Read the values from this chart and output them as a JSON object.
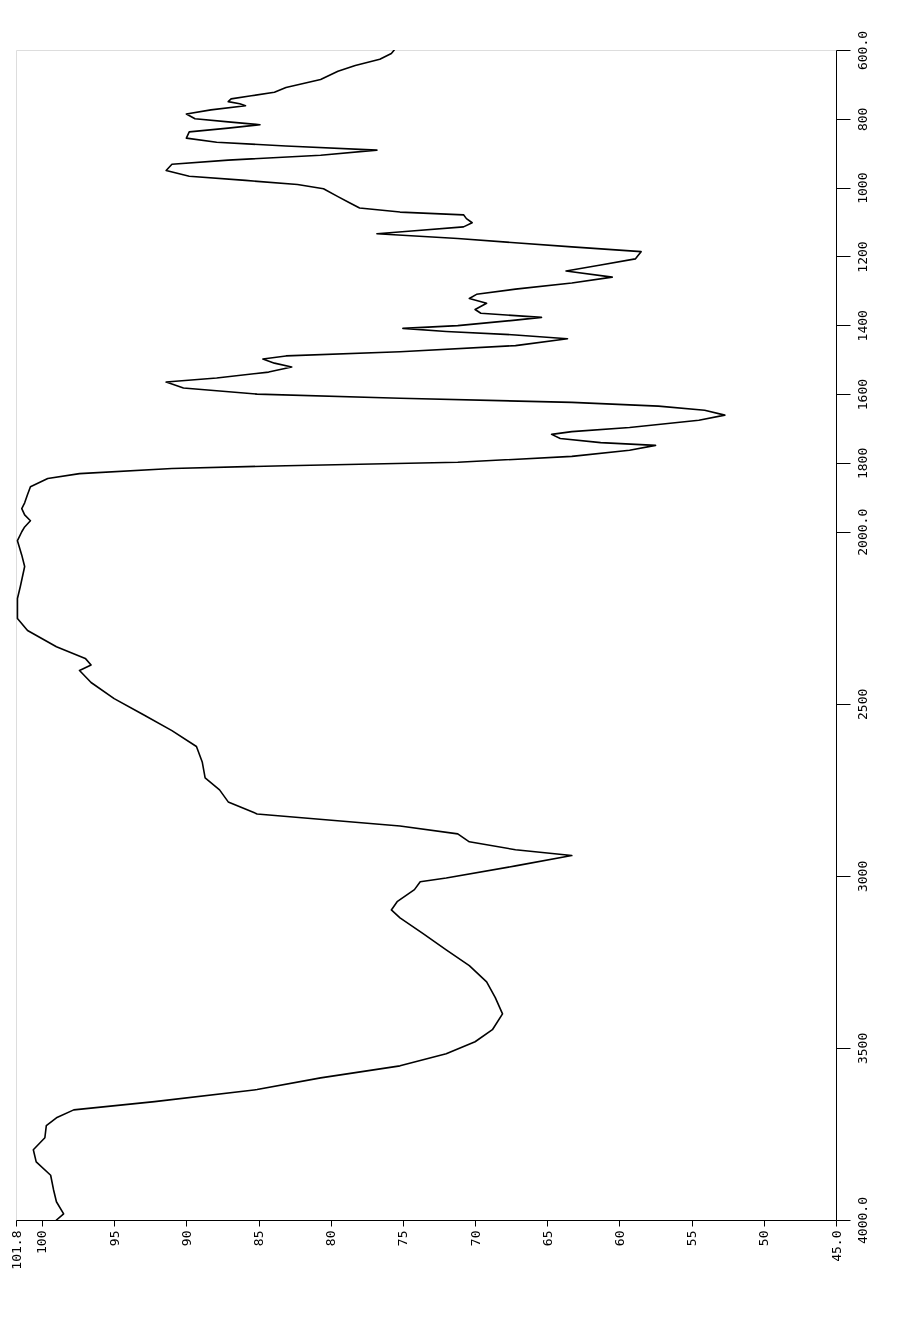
{
  "chart_data": {
    "type": "line",
    "x": [
      99.0,
      98.5,
      99.0,
      99.2,
      99.4,
      100.4,
      100.6,
      99.8,
      99.7,
      99.0,
      97.8,
      92.2,
      85.1,
      80.7,
      75.2,
      72.0,
      70.0,
      68.8,
      68.1,
      68.6,
      69.2,
      70.4,
      72.0,
      73.6,
      75.2,
      75.8,
      75.4,
      74.2,
      73.8,
      72.0,
      67.2,
      63.3,
      67.2,
      70.4,
      71.2,
      75.2,
      85.1,
      87.1,
      87.7,
      88.7,
      88.9,
      89.3,
      91.0,
      93.0,
      95.0,
      96.6,
      97.4,
      96.6,
      97.0,
      99.0,
      101.0,
      101.7,
      101.7,
      101.7,
      101.5,
      101.2,
      101.4,
      101.7,
      101.4,
      101.2,
      100.8,
      101.2,
      101.4,
      101.2,
      101.0,
      100.8,
      99.6,
      97.4,
      91.0,
      83.1,
      71.2,
      63.3,
      59.3,
      57.5,
      61.3,
      64.1,
      64.7,
      63.3,
      59.3,
      54.5,
      52.7,
      54.1,
      57.3,
      63.3,
      75.2,
      85.1,
      90.2,
      91.4,
      87.9,
      84.3,
      82.7,
      83.9,
      84.7,
      83.1,
      75.2,
      67.2,
      63.6,
      67.2,
      72.0,
      75.0,
      71.2,
      67.2,
      65.4,
      69.6,
      70.0,
      69.2,
      70.4,
      69.9,
      67.2,
      63.3,
      60.5,
      63.7,
      61.3,
      58.9,
      58.5,
      63.3,
      71.2,
      76.8,
      74.4,
      70.8,
      70.2,
      70.6,
      70.8,
      75.2,
      78.0,
      78.7,
      79.5,
      80.5,
      82.3,
      85.9,
      89.8,
      91.4,
      91.0,
      87.1,
      80.7,
      76.8,
      83.1,
      87.9,
      90.0,
      89.8,
      87.1,
      84.9,
      87.1,
      89.4,
      90.0,
      88.3,
      85.9,
      86.3,
      87.1,
      86.9,
      85.5,
      83.9,
      83.1,
      80.7,
      79.5,
      78.3,
      76.6,
      75.8,
      75.6
    ],
    "series": [
      {
        "color": "#000000",
        "values": [
          4000,
          3982,
          3947,
          3912,
          3870,
          3831,
          3796,
          3761,
          3726,
          3703,
          3680,
          3656,
          3621,
          3587,
          3552,
          3517,
          3482,
          3447,
          3401,
          3354,
          3308,
          3261,
          3215,
          3168,
          3122,
          3099,
          3075,
          3040,
          3017,
          3006,
          2971,
          2941,
          2924,
          2901,
          2878,
          2855,
          2820,
          2785,
          2750,
          2715,
          2669,
          2624,
          2578,
          2531,
          2485,
          2438,
          2403,
          2387,
          2368,
          2334,
          2287,
          2252,
          2217,
          2194,
          2159,
          2101,
          2068,
          2026,
          2000,
          1986,
          1968,
          1951,
          1933,
          1916,
          1892,
          1869,
          1845,
          1831,
          1816,
          1808,
          1798,
          1781,
          1763,
          1749,
          1741,
          1729,
          1717,
          1709,
          1697,
          1676,
          1661,
          1647,
          1635,
          1624,
          1612,
          1600,
          1582,
          1565,
          1553,
          1536,
          1521,
          1510,
          1498,
          1489,
          1477,
          1459,
          1439,
          1428,
          1418,
          1409,
          1401,
          1385,
          1377,
          1365,
          1354,
          1336,
          1322,
          1310,
          1295,
          1277,
          1260,
          1242,
          1225,
          1207,
          1186,
          1172,
          1148,
          1134,
          1126,
          1114,
          1102,
          1090,
          1079,
          1071,
          1059,
          1044,
          1026,
          1003,
          991,
          979,
          967,
          950,
          932,
          920,
          906,
          891,
          879,
          868,
          856,
          838,
          827,
          817,
          809,
          800,
          786,
          774,
          762,
          756,
          750,
          742,
          733,
          723,
          709,
          686,
          662,
          645,
          627,
          610,
          600
        ]
      }
    ],
    "xlim": [
      101.8,
      45.0
    ],
    "xticks": [
      101.8,
      100,
      95,
      90,
      85,
      80,
      75,
      70,
      65,
      60,
      55,
      50,
      {
        "value": 45,
        "label": "45.0"
      }
    ],
    "ylim": [
      4000,
      600
    ],
    "yticks": [
      {
        "value": 4000,
        "label": "4000.0"
      },
      3500,
      3000,
      2500,
      {
        "value": 2000,
        "label": "2000.0"
      },
      1800,
      1600,
      1400,
      1200,
      1000,
      800,
      {
        "value": 600,
        "label": "600.0"
      }
    ],
    "grid": false
  }
}
